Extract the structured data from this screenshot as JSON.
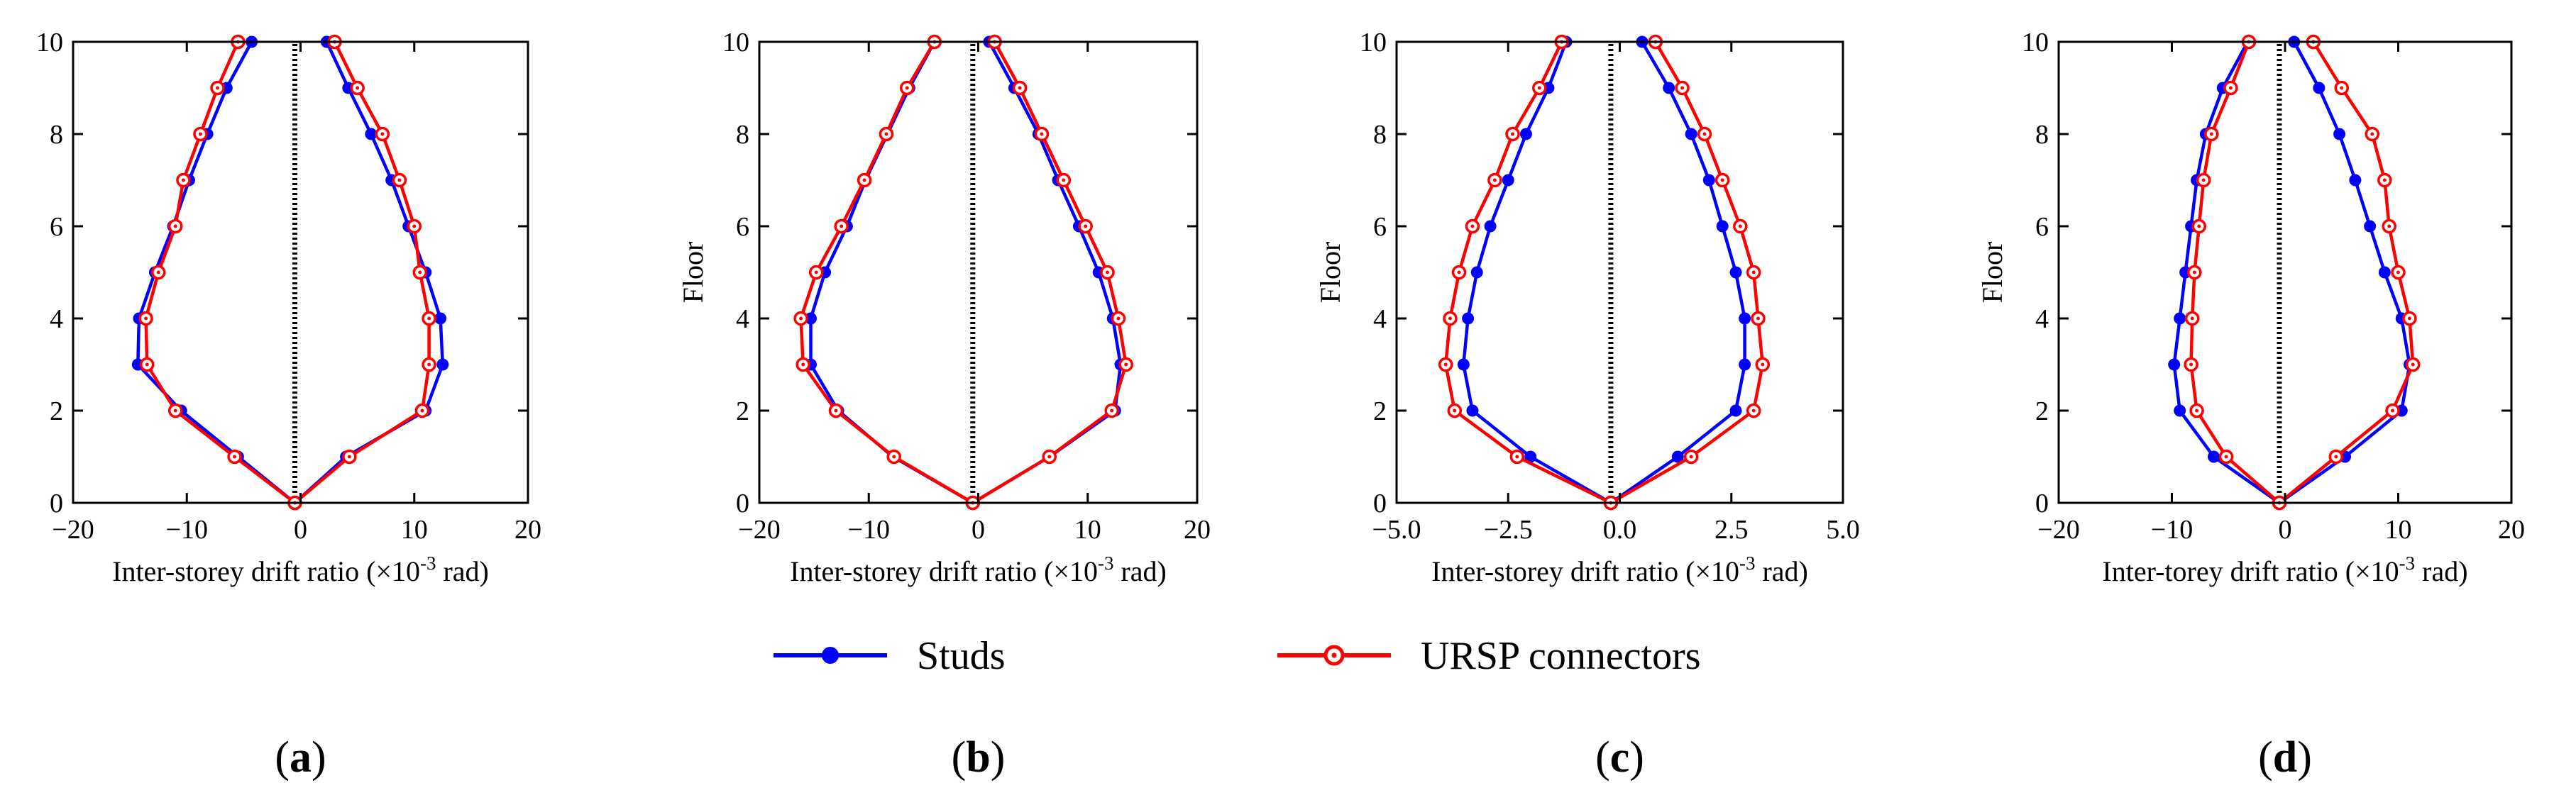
{
  "figure": {
    "legend": [
      {
        "name": "Studs",
        "color": "#0000ff",
        "marker": "filled-circle"
      },
      {
        "name": "URSP connectors",
        "color": "#ff0000",
        "marker": "open-circle"
      }
    ]
  },
  "chart_data": [
    {
      "type": "line",
      "panel": "a",
      "panel_label": "(a)",
      "xlabel": "Inter-storey drift ratio (×10-3 rad)",
      "ylabel": "",
      "xlim": [
        -20,
        20
      ],
      "ylim": [
        0,
        10
      ],
      "xticks": [
        -20,
        -10,
        0,
        10,
        20
      ],
      "xtick_labels": [
        "−20",
        "−10",
        "0",
        "10",
        "20"
      ],
      "yticks": [
        0,
        2,
        4,
        6,
        8,
        10
      ],
      "ytick_labels": [
        "0",
        "2",
        "4",
        "6",
        "8",
        "10"
      ],
      "reference_line_x": -0.5,
      "series": [
        {
          "name": "Studs",
          "side": "negative",
          "x": [
            -0.5,
            -5.5,
            -10.5,
            -14.3,
            -14.2,
            -12.8,
            -11.2,
            -9.8,
            -8.2,
            -6.5,
            -4.3
          ],
          "y": [
            0,
            1,
            2,
            3,
            4,
            5,
            6,
            7,
            8,
            9,
            10
          ]
        },
        {
          "name": "Studs",
          "side": "positive",
          "x": [
            -0.5,
            4.0,
            11.0,
            12.5,
            12.3,
            11.0,
            9.5,
            8.0,
            6.2,
            4.2,
            2.3
          ],
          "y": [
            0,
            1,
            2,
            3,
            4,
            5,
            6,
            7,
            8,
            9,
            10
          ]
        },
        {
          "name": "URSP connectors",
          "side": "negative",
          "x": [
            -0.5,
            -5.8,
            -11.0,
            -13.5,
            -13.6,
            -12.5,
            -11.0,
            -10.3,
            -8.8,
            -7.3,
            -5.5
          ],
          "y": [
            0,
            1,
            2,
            3,
            4,
            5,
            6,
            7,
            8,
            9,
            10
          ]
        },
        {
          "name": "URSP connectors",
          "side": "positive",
          "x": [
            -0.5,
            4.3,
            10.7,
            11.3,
            11.3,
            10.5,
            10.0,
            8.7,
            7.2,
            5.0,
            3.0
          ],
          "y": [
            0,
            1,
            2,
            3,
            4,
            5,
            6,
            7,
            8,
            9,
            10
          ]
        }
      ]
    },
    {
      "type": "line",
      "panel": "b",
      "panel_label": "(b)",
      "xlabel": "Inter-storey drift ratio (×10-3 rad)",
      "ylabel": "Floor",
      "xlim": [
        -20,
        20
      ],
      "ylim": [
        0,
        10
      ],
      "xticks": [
        -20,
        -10,
        0,
        10,
        20
      ],
      "xtick_labels": [
        "−20",
        "−10",
        "0",
        "10",
        "20"
      ],
      "yticks": [
        0,
        2,
        4,
        6,
        8,
        10
      ],
      "ytick_labels": [
        "0",
        "2",
        "4",
        "6",
        "8",
        "10"
      ],
      "reference_line_x": -0.5,
      "series": [
        {
          "name": "Studs",
          "side": "negative",
          "x": [
            -0.5,
            -7.8,
            -12.8,
            -15.3,
            -15.3,
            -14.0,
            -12.0,
            -10.3,
            -8.3,
            -6.3,
            -4.0
          ],
          "y": [
            0,
            1,
            2,
            3,
            4,
            5,
            6,
            7,
            8,
            9,
            10
          ]
        },
        {
          "name": "Studs",
          "side": "positive",
          "x": [
            -0.5,
            6.5,
            12.5,
            13.0,
            12.3,
            11.0,
            9.2,
            7.3,
            5.5,
            3.3,
            1.0
          ],
          "y": [
            0,
            1,
            2,
            3,
            4,
            5,
            6,
            7,
            8,
            9,
            10
          ]
        },
        {
          "name": "URSP connectors",
          "side": "negative",
          "x": [
            -0.5,
            -7.7,
            -13.0,
            -16.0,
            -16.2,
            -14.8,
            -12.5,
            -10.4,
            -8.4,
            -6.5,
            -4.0
          ],
          "y": [
            0,
            1,
            2,
            3,
            4,
            5,
            6,
            7,
            8,
            9,
            10
          ]
        },
        {
          "name": "URSP connectors",
          "side": "positive",
          "x": [
            -0.5,
            6.5,
            12.2,
            13.5,
            12.8,
            11.8,
            9.8,
            7.8,
            5.8,
            3.8,
            1.5
          ],
          "y": [
            0,
            1,
            2,
            3,
            4,
            5,
            6,
            7,
            8,
            9,
            10
          ]
        }
      ]
    },
    {
      "type": "line",
      "panel": "c",
      "panel_label": "(c)",
      "xlabel": "Inter-storey drift ratio (×10-3 rad)",
      "ylabel": "Floor",
      "xlim": [
        -5.0,
        5.0
      ],
      "ylim": [
        0,
        10
      ],
      "xticks": [
        -5.0,
        -2.5,
        0.0,
        2.5,
        5.0
      ],
      "xtick_labels": [
        "−5.0",
        "−2.5",
        "0.0",
        "2.5",
        "5.0"
      ],
      "yticks": [
        0,
        2,
        4,
        6,
        8,
        10
      ],
      "ytick_labels": [
        "0",
        "2",
        "4",
        "6",
        "8",
        "10"
      ],
      "reference_line_x": -0.2,
      "series": [
        {
          "name": "Studs",
          "side": "negative",
          "x": [
            -0.2,
            -2.0,
            -3.3,
            -3.5,
            -3.4,
            -3.2,
            -2.9,
            -2.5,
            -2.1,
            -1.6,
            -1.2
          ],
          "y": [
            0,
            1,
            2,
            3,
            4,
            5,
            6,
            7,
            8,
            9,
            10
          ]
        },
        {
          "name": "Studs",
          "side": "positive",
          "x": [
            -0.2,
            1.3,
            2.6,
            2.8,
            2.8,
            2.6,
            2.3,
            2.0,
            1.6,
            1.1,
            0.5
          ],
          "y": [
            0,
            1,
            2,
            3,
            4,
            5,
            6,
            7,
            8,
            9,
            10
          ]
        },
        {
          "name": "URSP connectors",
          "side": "negative",
          "x": [
            -0.2,
            -2.3,
            -3.7,
            -3.9,
            -3.8,
            -3.6,
            -3.3,
            -2.8,
            -2.4,
            -1.8,
            -1.3
          ],
          "y": [
            0,
            1,
            2,
            3,
            4,
            5,
            6,
            7,
            8,
            9,
            10
          ]
        },
        {
          "name": "URSP connectors",
          "side": "positive",
          "x": [
            -0.2,
            1.6,
            3.0,
            3.2,
            3.1,
            3.0,
            2.7,
            2.3,
            1.9,
            1.4,
            0.8
          ],
          "y": [
            0,
            1,
            2,
            3,
            4,
            5,
            6,
            7,
            8,
            9,
            10
          ]
        }
      ]
    },
    {
      "type": "line",
      "panel": "d",
      "panel_label": "(d)",
      "xlabel": "Inter-torey drift ratio (×10-3 rad)",
      "ylabel": "Floor",
      "xlim": [
        -20,
        20
      ],
      "ylim": [
        0,
        10
      ],
      "xticks": [
        -20,
        -10,
        0,
        10,
        20
      ],
      "xtick_labels": [
        "−20",
        "−10",
        "0",
        "10",
        "20"
      ],
      "yticks": [
        0,
        2,
        4,
        6,
        8,
        10
      ],
      "ytick_labels": [
        "0",
        "2",
        "4",
        "6",
        "8",
        "10"
      ],
      "reference_line_x": -0.5,
      "series": [
        {
          "name": "Studs",
          "side": "negative",
          "x": [
            -0.5,
            -6.3,
            -9.3,
            -9.8,
            -9.3,
            -8.8,
            -8.3,
            -7.8,
            -7.0,
            -5.5,
            -3.3
          ],
          "y": [
            0,
            1,
            2,
            3,
            4,
            5,
            6,
            7,
            8,
            9,
            10
          ]
        },
        {
          "name": "Studs",
          "side": "positive",
          "x": [
            -0.5,
            5.3,
            10.3,
            11.0,
            10.3,
            8.8,
            7.5,
            6.2,
            4.8,
            3.0,
            0.8
          ],
          "y": [
            0,
            1,
            2,
            3,
            4,
            5,
            6,
            7,
            8,
            9,
            10
          ]
        },
        {
          "name": "URSP connectors",
          "side": "negative",
          "x": [
            -0.5,
            -5.2,
            -7.8,
            -8.3,
            -8.2,
            -8.0,
            -7.6,
            -7.2,
            -6.5,
            -4.8,
            -3.2
          ],
          "y": [
            0,
            1,
            2,
            3,
            4,
            5,
            6,
            7,
            8,
            9,
            10
          ]
        },
        {
          "name": "URSP connectors",
          "side": "positive",
          "x": [
            -0.5,
            4.5,
            9.5,
            11.3,
            11.0,
            10.0,
            9.2,
            8.8,
            7.7,
            5.0,
            2.5
          ],
          "y": [
            0,
            1,
            2,
            3,
            4,
            5,
            6,
            7,
            8,
            9,
            10
          ]
        }
      ]
    }
  ]
}
